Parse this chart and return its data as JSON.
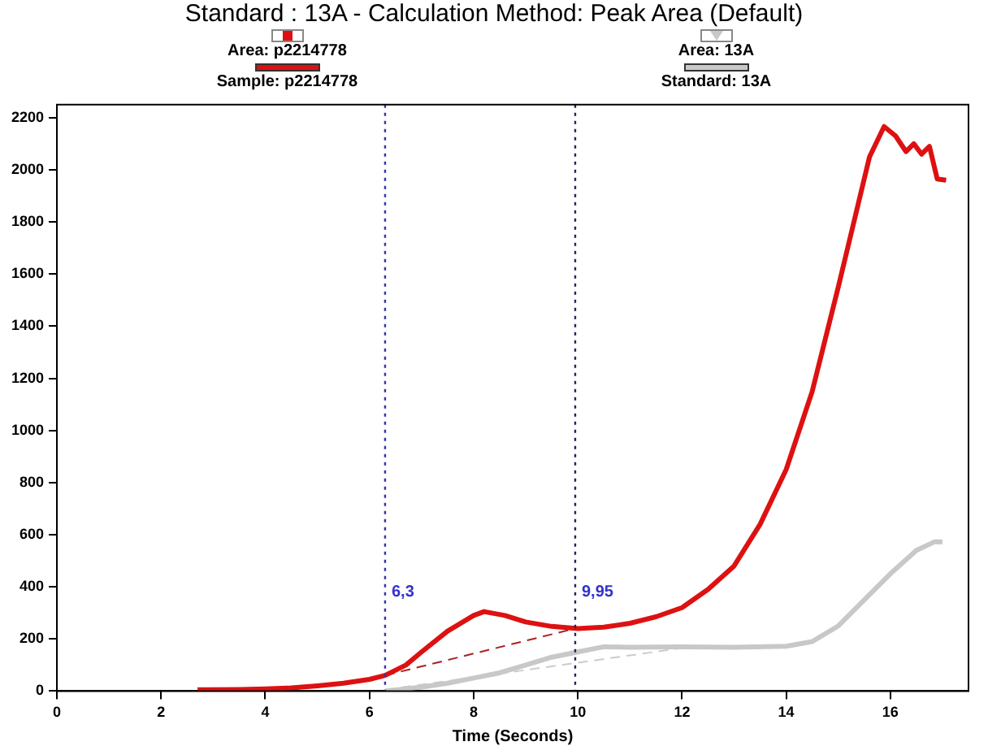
{
  "chart_data": {
    "type": "line",
    "title": "Standard : 13A - Calculation Method: Peak Area (Default)",
    "xlabel": "Time (Seconds)",
    "annotations": [
      "Area: p2214778",
      "Area: 13A"
    ],
    "xlim": [
      0,
      17.5
    ],
    "xticks": [
      0,
      2,
      4,
      6,
      8,
      10,
      12,
      14,
      16
    ],
    "ylim": [
      0,
      2250
    ],
    "yticks": [
      0,
      200,
      400,
      600,
      800,
      1000,
      1200,
      1400,
      1600,
      1800,
      2000,
      2200
    ],
    "grid": false,
    "legend": "top",
    "marker": "none",
    "ref_lines": [
      {
        "axis": "x",
        "value": 6.3,
        "label": "6,3",
        "color": "#3333aa",
        "line_style": "dotted"
      },
      {
        "axis": "x",
        "value": 9.95,
        "label": "9,95",
        "color": "#222266",
        "line_style": "dotted"
      }
    ],
    "series": [
      {
        "name": "Sample: p2214778",
        "color": "#dd1111",
        "x": [
          2.7,
          3.5,
          4,
          4.5,
          5,
          5.5,
          6,
          6.3,
          6.7,
          7,
          7.5,
          8,
          8.2,
          8.6,
          9,
          9.5,
          10,
          10.5,
          11,
          11.5,
          12,
          12.5,
          13,
          13.5,
          14,
          14.5,
          15,
          15.3,
          15.6,
          15.88,
          16.1,
          16.3,
          16.45,
          16.6,
          16.75,
          16.9,
          17.07
        ],
        "values": [
          5,
          6,
          8,
          12,
          20,
          30,
          45,
          60,
          100,
          150,
          230,
          290,
          305,
          290,
          265,
          248,
          240,
          245,
          260,
          285,
          320,
          390,
          480,
          640,
          850,
          1150,
          1550,
          1800,
          2050,
          2166,
          2130,
          2070,
          2100,
          2060,
          2090,
          1965,
          1960
        ]
      },
      {
        "name": "Standard: 13A",
        "color": "#c8c8c8",
        "x": [
          6.3,
          7,
          7.5,
          8,
          8.5,
          9,
          9.5,
          10,
          10.5,
          11,
          12,
          13,
          14,
          14.5,
          15,
          15.5,
          16,
          16.5,
          16.85,
          17
        ],
        "values": [
          0,
          15,
          30,
          50,
          70,
          100,
          130,
          150,
          170,
          168,
          170,
          168,
          172,
          190,
          250,
          350,
          450,
          540,
          573,
          573
        ]
      },
      {
        "color": "#aa2222",
        "line_style": "dashed",
        "x": [
          6.3,
          9.95
        ],
        "values": [
          60,
          240
        ]
      },
      {
        "color": "#cccccc",
        "line_style": "dashed",
        "x": [
          6.3,
          12
        ],
        "values": [
          5,
          165
        ]
      }
    ]
  }
}
